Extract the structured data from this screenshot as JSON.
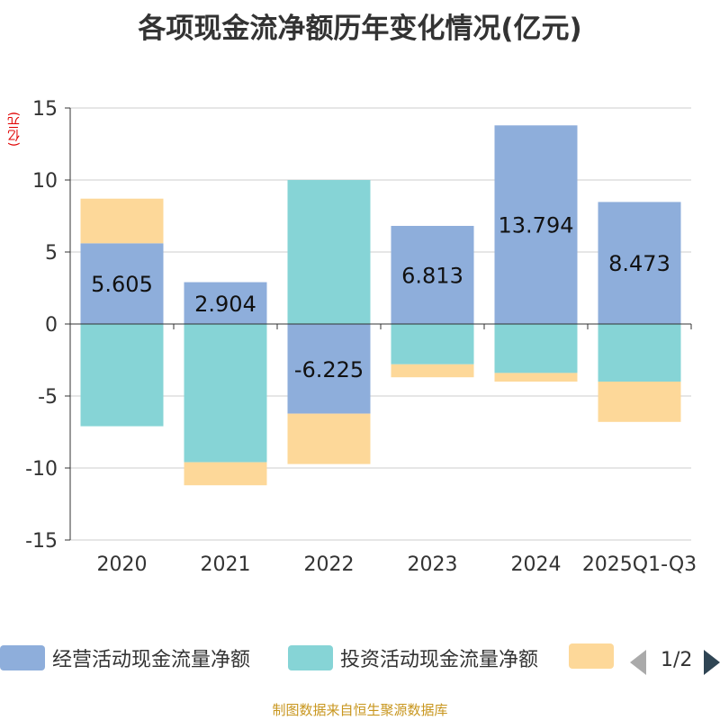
{
  "header": {
    "title": "各项现金流净额历年变化情况(亿元)"
  },
  "unit_label": "(亿元)",
  "legend": {
    "items": [
      {
        "label": "经营活动现金流量净额",
        "color": "#8eaedb"
      },
      {
        "label": "投资活动现金流量净额",
        "color": "#86d4d6"
      },
      {
        "label": "",
        "color": "#fdd899"
      }
    ],
    "page": "1/2"
  },
  "footer": {
    "source": "制图数据来自恒生聚源数据库"
  },
  "chart_data": {
    "type": "bar",
    "stacked": true,
    "title": "各项现金流净额历年变化情况(亿元)",
    "ylabel": "(亿元)",
    "ylim": [
      -15,
      15
    ],
    "yticks": [
      15,
      10,
      5,
      0,
      -5,
      -10,
      -15
    ],
    "grid": true,
    "categories": [
      "2020",
      "2021",
      "2022",
      "2023",
      "2024",
      "2025Q1-Q3"
    ],
    "series": [
      {
        "name": "经营活动现金流量净额",
        "color": "#8eaedb",
        "values": [
          5.605,
          2.904,
          -6.225,
          6.813,
          13.794,
          8.473
        ],
        "labels": true
      },
      {
        "name": "投资活动现金流量净额",
        "color": "#86d4d6",
        "values": [
          -7.1,
          -9.6,
          10.0,
          -2.8,
          -3.4,
          -4.0
        ]
      },
      {
        "name": "",
        "color": "#fdd899",
        "values": [
          3.1,
          -1.6,
          -3.5,
          -0.9,
          -0.6,
          -2.8
        ]
      }
    ]
  }
}
